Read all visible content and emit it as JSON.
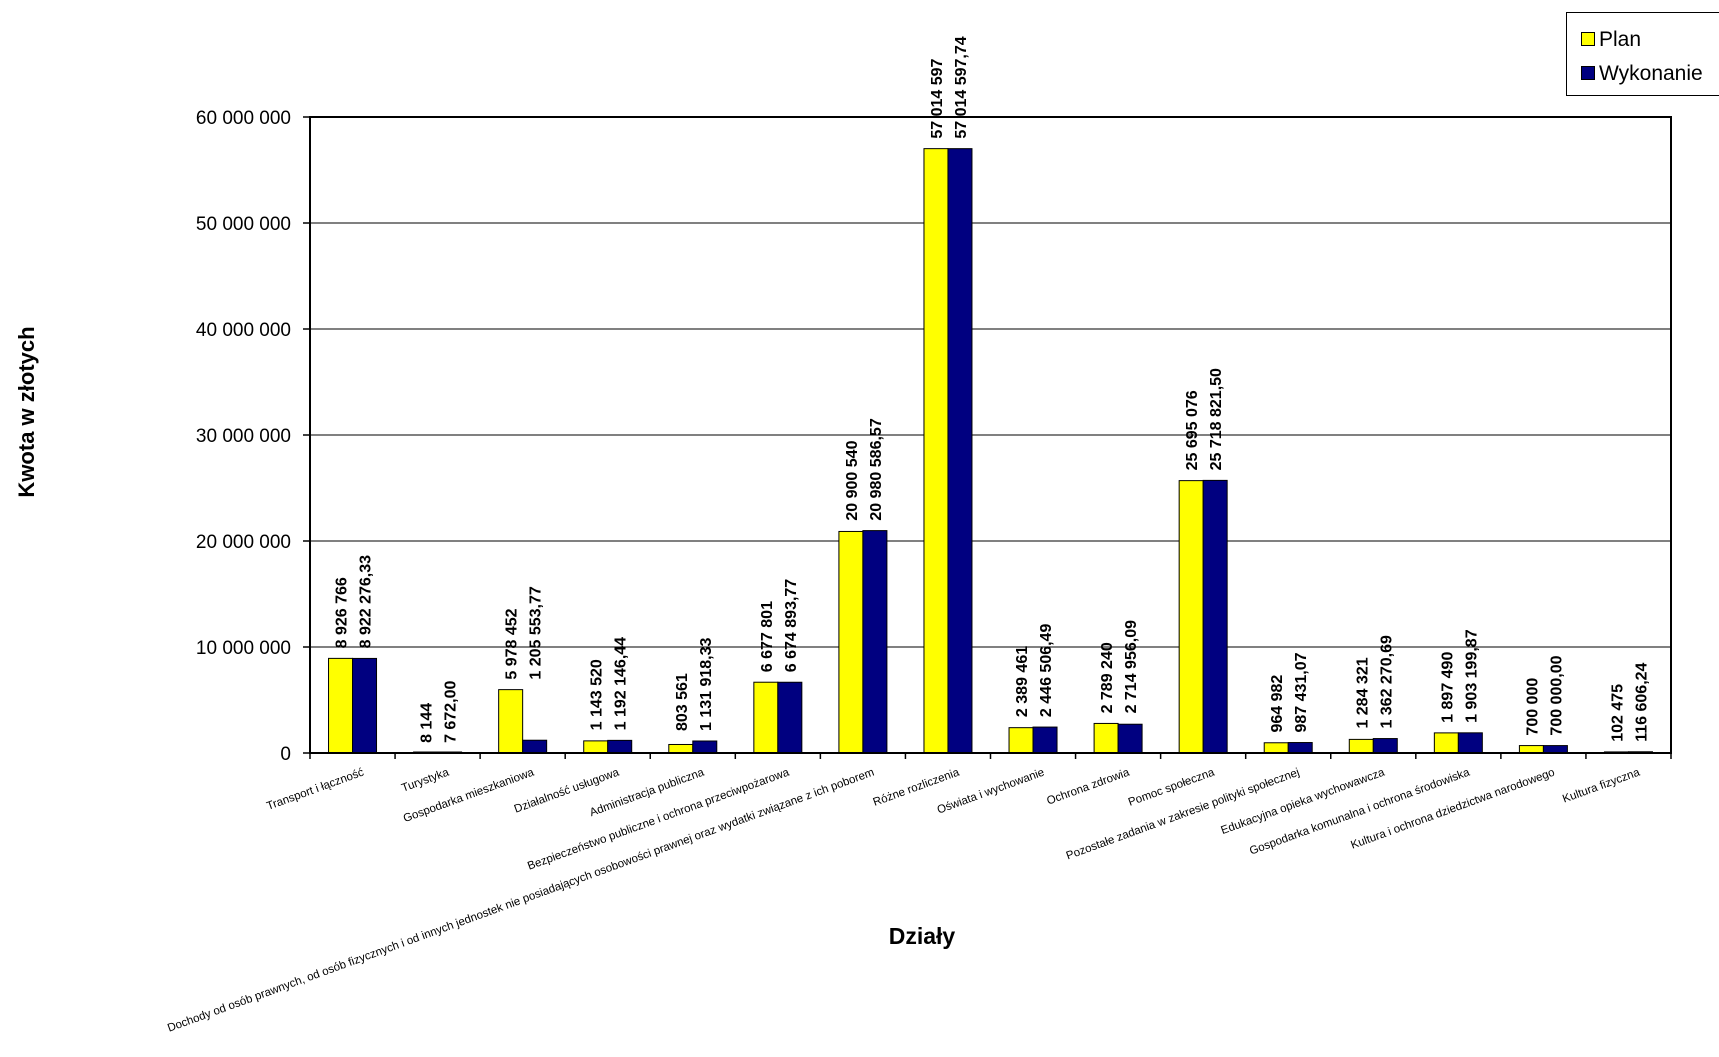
{
  "chart_data": {
    "type": "bar",
    "title": "",
    "xlabel": "Działy",
    "ylabel": "Kwota w złotych",
    "ylim": [
      0,
      60000000
    ],
    "yticks": [
      0,
      10000000,
      20000000,
      30000000,
      40000000,
      50000000,
      60000000
    ],
    "ytick_labels": [
      "0",
      "10 000 000",
      "20 000 000",
      "30 000 000",
      "40 000 000",
      "50 000 000",
      "60 000 000"
    ],
    "grid": true,
    "legend_position": "top-right",
    "categories": [
      "Transport i łączność",
      "Turystyka",
      "Gospodarka mieszkaniowa",
      "Działalność usługowa",
      "Administracja publiczna",
      "Bezpieczeństwo publiczne i ochrona przeciwpożarowa",
      "Dochody od osób prawnych, od osób fizycznych i od innych jednostek nie posiadających osobowości prawnej oraz wydatki związane z ich poborem",
      "Różne rozliczenia",
      "Oświata i wychowanie",
      "Ochrona zdrowia",
      "Pomoc społeczna",
      "Pozostałe zadania w zakresie polityki społecznej",
      "Edukacyjna opieka wychowawcza",
      "Gospodarka komunalna i ochrona środowiska",
      "Kultura i ochrona dziedzictwa narodowego",
      "Kultura fizyczna"
    ],
    "series": [
      {
        "name": "Plan",
        "color": "#ffff00",
        "values": [
          8926766,
          8144,
          5978452,
          1143520,
          803561,
          6677801,
          20900540,
          57014597,
          2389461,
          2789240,
          25695076,
          964982,
          1284321,
          1897490,
          700000,
          102475
        ],
        "labels": [
          "8 926 766",
          "8 144",
          "5 978 452",
          "1 143 520",
          "803 561",
          "6 677 801",
          "20 900 540",
          "57 014 597",
          "2 389 461",
          "2 789 240",
          "25 695 076",
          "964 982",
          "1 284 321",
          "1 897 490",
          "700 000",
          "102 475"
        ]
      },
      {
        "name": "Wykonanie",
        "color": "#000080",
        "values": [
          8922276.33,
          7672.0,
          1205553.77,
          1192146.44,
          1131918.33,
          6674893.77,
          20980586.57,
          57014597.74,
          2446506.49,
          2714956.09,
          25718821.5,
          987431.07,
          1362270.69,
          1903199.87,
          700000.0,
          116606.24
        ],
        "labels": [
          "8 922 276,33",
          "7 672,00",
          "1 205 553,77",
          "1 192 146,44",
          "1 131 918,33",
          "6 674 893,77",
          "20 980 586,57",
          "57 014 597,74",
          "2 446 506,49",
          "2 714 956,09",
          "25 718 821,50",
          "987 431,07",
          "1 362 270,69",
          "1 903 199,87",
          "700 000,00",
          "116 606,24"
        ]
      }
    ]
  }
}
